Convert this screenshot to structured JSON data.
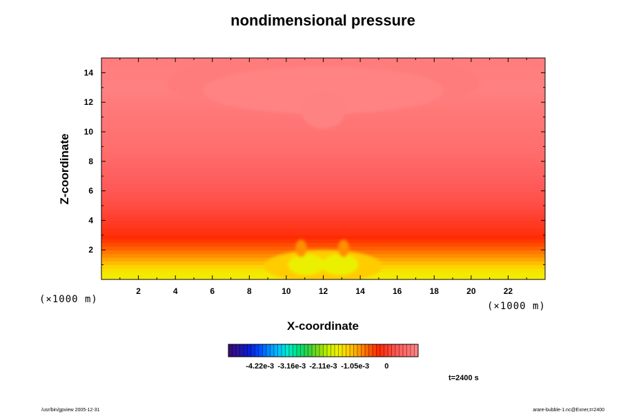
{
  "chart_data": {
    "type": "heatmap",
    "title": "nondimensional pressure",
    "xlabel": "X-coordinate",
    "ylabel": "Z-coordinate",
    "x_unit": "(×1000 m)",
    "y_unit": "(×1000 m)",
    "xlim": [
      0,
      24
    ],
    "ylim": [
      0,
      15
    ],
    "x_ticks": [
      2,
      4,
      6,
      8,
      10,
      12,
      14,
      16,
      18,
      20,
      22
    ],
    "y_ticks": [
      2,
      4,
      6,
      8,
      10,
      12,
      14
    ],
    "colorbar": {
      "min": -0.00527,
      "max": 0.00105,
      "tick_values": [
        -0.00422,
        -0.00316,
        -0.00211,
        -0.00105,
        0
      ],
      "tick_labels": [
        "-4.22e-3",
        "-3.16e-3",
        "-2.11e-3",
        "-1.05e-3",
        "0"
      ],
      "colors": [
        "#3a0a6e",
        "#2a14a0",
        "#0a1ad2",
        "#0046ff",
        "#0088ff",
        "#00c2ff",
        "#00eec8",
        "#00e080",
        "#30d040",
        "#80dc10",
        "#c8f000",
        "#f0f000",
        "#ffd000",
        "#ffa000",
        "#ff6000",
        "#ff2a00",
        "#ff4030",
        "#ff5c5c",
        "#ff7070",
        "#ff8888"
      ]
    },
    "levels_observed": {
      "z_values": [
        0.5,
        1.5,
        3,
        5,
        7.5,
        9,
        11,
        13,
        14.5
      ],
      "field_values": [
        -0.00155,
        -0.0009,
        -0.0002,
        0.0002,
        0.0005,
        0.0007,
        0.0008,
        0.00095,
        0.0009
      ]
    },
    "time_label": "t=2400 s",
    "footer_left": "/usr/bin/gpview 2005-12-31",
    "footer_right": "arare-bubble-1.nc@Exner,t=2400"
  }
}
